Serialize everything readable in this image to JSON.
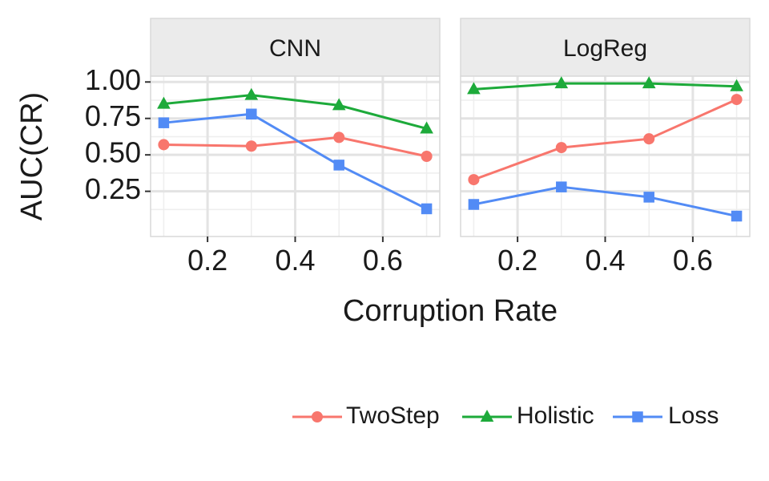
{
  "chart_data": {
    "type": "line",
    "xlabel": "Corruption Rate",
    "ylabel": "AUC(CR)",
    "x_ticks": [
      0.2,
      0.4,
      0.6
    ],
    "x_tick_labels": [
      "0.2",
      "0.4",
      "0.6"
    ],
    "y_ticks": [
      0.25,
      0.5,
      0.75,
      1.0
    ],
    "y_tick_labels": [
      "0.25",
      "0.50",
      "0.75",
      "1.00"
    ],
    "xlim": [
      0.07,
      0.73
    ],
    "ylim": [
      -0.06,
      1.04
    ],
    "grid": true,
    "legend_position": "bottom",
    "legend": [
      {
        "name": "TwoStep",
        "marker": "circle",
        "color": "#F8766D"
      },
      {
        "name": "Holistic",
        "marker": "triangle",
        "color": "#1DAA3A"
      },
      {
        "name": "Loss",
        "marker": "square",
        "color": "#528BF5"
      }
    ],
    "panels": [
      {
        "title": "CNN",
        "series": [
          {
            "name": "TwoStep",
            "x": [
              0.1,
              0.3,
              0.5,
              0.7
            ],
            "y": [
              0.57,
              0.56,
              0.62,
              0.49
            ]
          },
          {
            "name": "Holistic",
            "x": [
              0.1,
              0.3,
              0.5,
              0.7
            ],
            "y": [
              0.85,
              0.91,
              0.84,
              0.68
            ]
          },
          {
            "name": "Loss",
            "x": [
              0.1,
              0.3,
              0.5,
              0.7
            ],
            "y": [
              0.72,
              0.78,
              0.43,
              0.13
            ]
          }
        ]
      },
      {
        "title": "LogReg",
        "series": [
          {
            "name": "TwoStep",
            "x": [
              0.1,
              0.3,
              0.5,
              0.7
            ],
            "y": [
              0.33,
              0.55,
              0.61,
              0.88
            ]
          },
          {
            "name": "Holistic",
            "x": [
              0.1,
              0.3,
              0.5,
              0.7
            ],
            "y": [
              0.95,
              0.99,
              0.99,
              0.97
            ]
          },
          {
            "name": "Loss",
            "x": [
              0.1,
              0.3,
              0.5,
              0.7
            ],
            "y": [
              0.16,
              0.28,
              0.21,
              0.08
            ]
          }
        ]
      }
    ]
  }
}
